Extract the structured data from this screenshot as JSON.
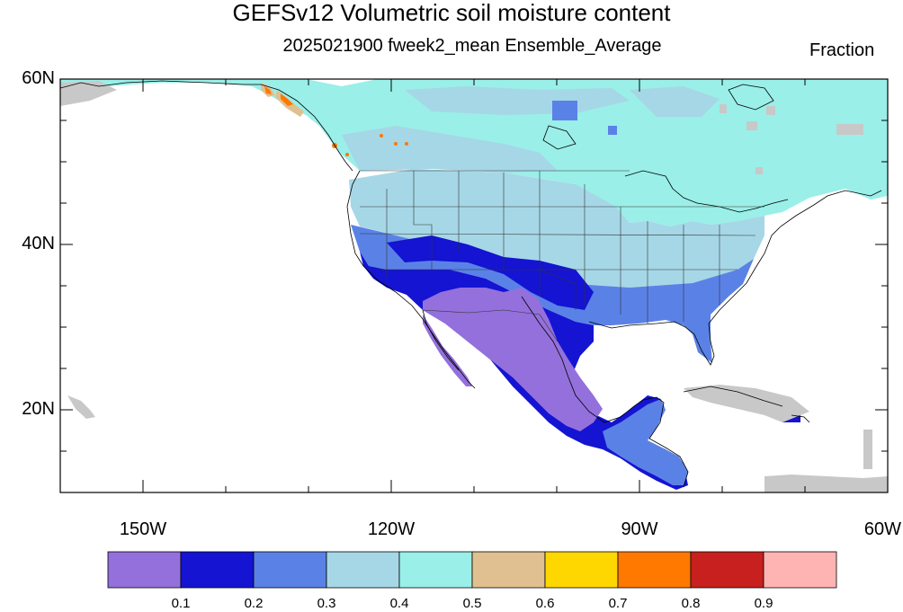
{
  "title": "GEFSv12 Volumetric soil moisture content",
  "subtitle": "2025021900 fweek2_mean Ensemble_Average",
  "units": "Fraction",
  "map": {
    "projection": "cylindrical-equidistant",
    "lon_range": [
      -160,
      -60
    ],
    "lat_range": [
      10,
      60
    ],
    "colors": {
      "ocean": "#ffffff",
      "missing": "#c8c8c8",
      "boundary": "#000000"
    }
  },
  "axes": {
    "lat_labels": [
      {
        "lat": 60,
        "text": "60N"
      },
      {
        "lat": 40,
        "text": "40N"
      },
      {
        "lat": 20,
        "text": "20N"
      }
    ],
    "lon_labels": [
      {
        "lon": -150,
        "text": "150W"
      },
      {
        "lon": -120,
        "text": "120W"
      },
      {
        "lon": -90,
        "text": "90W"
      },
      {
        "lon": -60,
        "text": "60W"
      }
    ]
  },
  "colorbar": {
    "colors": [
      "#9370db",
      "#1414d2",
      "#5a82e6",
      "#a6d7e6",
      "#9aefe8",
      "#e0c090",
      "#ffd700",
      "#ff7800",
      "#c8201e",
      "#ffb4b4"
    ],
    "labels": [
      "0.1",
      "0.2",
      "0.3",
      "0.4",
      "0.5",
      "0.6",
      "0.7",
      "0.8",
      "0.9"
    ]
  }
}
